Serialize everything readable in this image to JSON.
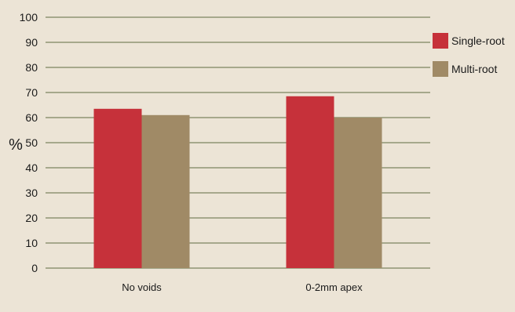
{
  "chart_data": {
    "type": "bar",
    "title": "",
    "xlabel": "",
    "ylabel": "%",
    "ylim": [
      0,
      100
    ],
    "yticks": [
      0,
      10,
      20,
      30,
      40,
      50,
      60,
      70,
      80,
      90,
      100
    ],
    "grid": true,
    "legend_position": "right",
    "categories": [
      "No voids",
      "0-2mm apex"
    ],
    "series": [
      {
        "name": "Single-root",
        "color": "#c6313a",
        "values": [
          63.5,
          68.5
        ]
      },
      {
        "name": "Multi-root",
        "color": "#a08a66",
        "values": [
          61,
          60
        ]
      }
    ],
    "background": "#ece4d6",
    "gridline_color": "#5f6b43"
  }
}
